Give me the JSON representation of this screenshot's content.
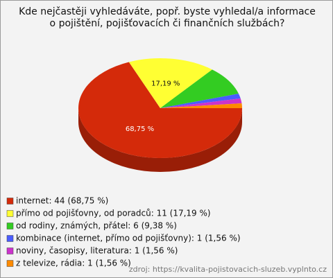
{
  "chart_data": {
    "type": "pie",
    "title": "Kde nejčastěji vyhledáváte, popř. byste vyhledal/a informace o pojištění, pojišťovacích či finančních službách?",
    "categories": [
      "internet: 44 (68,75 %)",
      "přímo od pojišťovny, od poradců: 11 (17,19 %)",
      "od rodiny, známých, přátel: 6 (9,38 %)",
      "kombinace (internet, přímo od pojišťovny): 1 (1,56 %)",
      "noviny, časopisy, literatura: 1 (1,56 %)",
      "z televize, rádia: 1 (1,56 %)"
    ],
    "values": [
      68.75,
      17.19,
      9.38,
      1.56,
      1.56,
      1.56
    ],
    "value_labels": [
      "68,75 %",
      "17,19 %",
      null,
      null,
      null,
      null
    ],
    "colors": [
      "#d42a0a",
      "#ffff33",
      "#33cc22",
      "#4a5cff",
      "#cc33cc",
      "#ff8a00"
    ],
    "source": "zdroj: https://kvalita-pojistovacich-sluzeb.vyplnto.cz"
  }
}
